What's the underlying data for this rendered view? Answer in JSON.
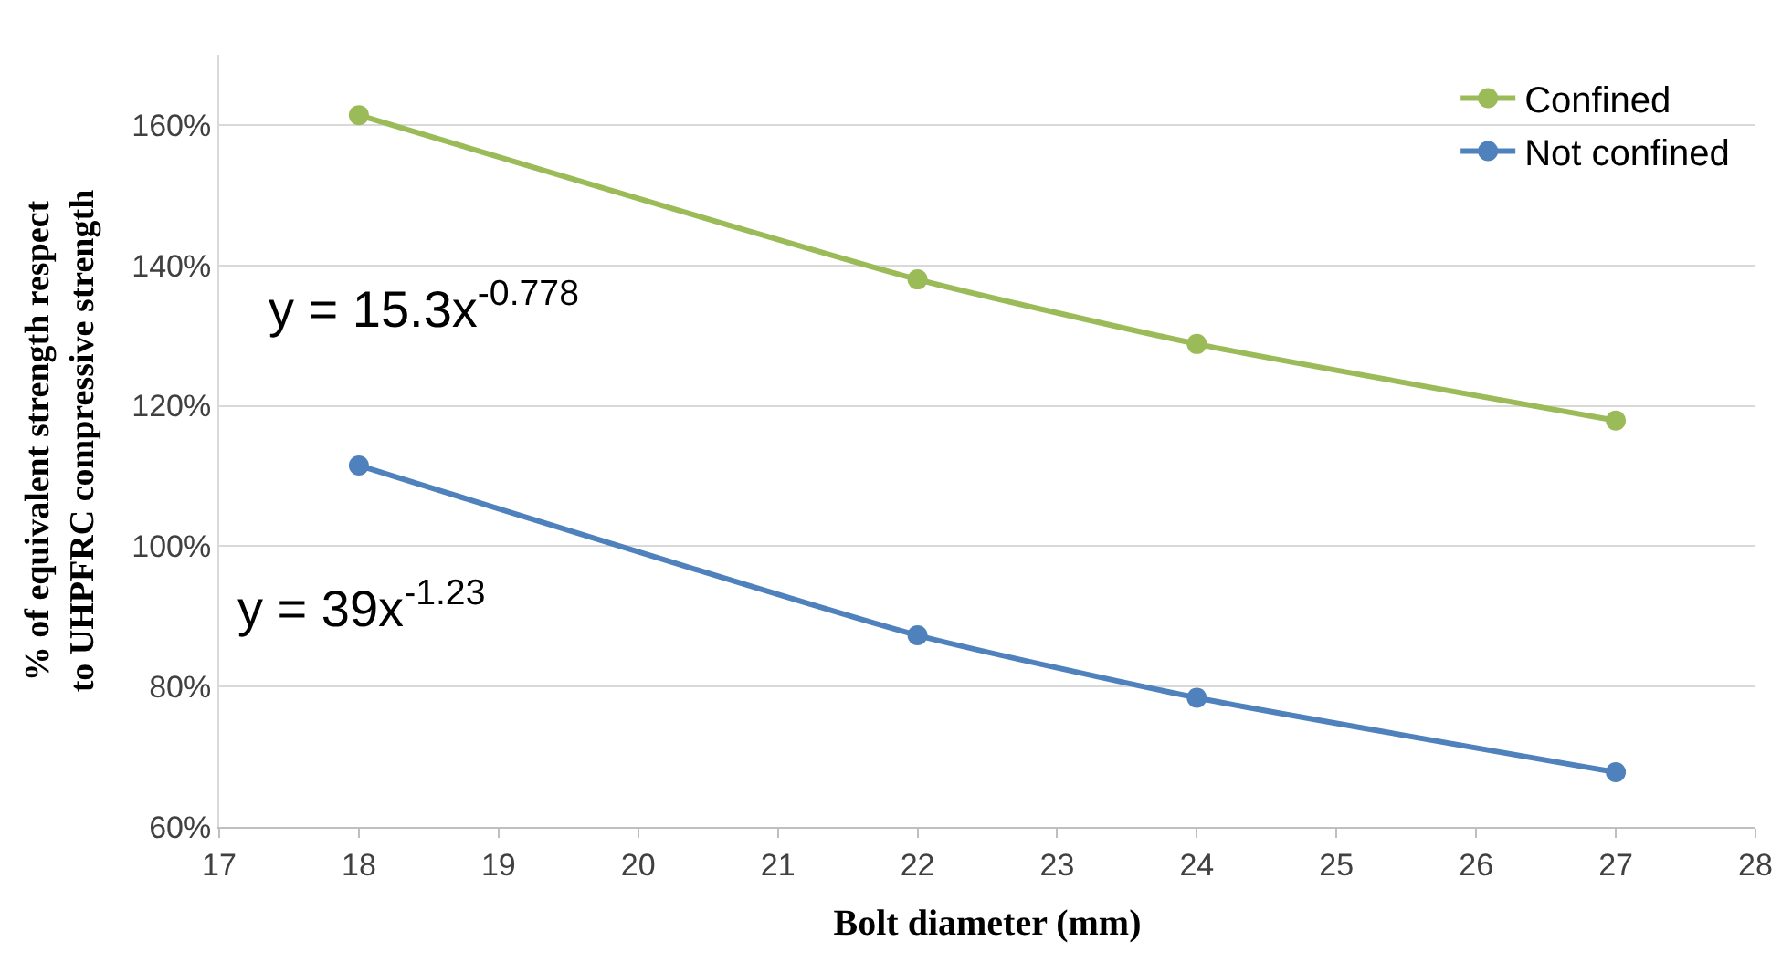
{
  "chart_data": {
    "type": "line",
    "xlabel": "Bolt diameter (mm)",
    "ylabel": "% of equivalent strength respect\nto UHPFRC compressive strength",
    "x": [
      18,
      22,
      24,
      27
    ],
    "series": [
      {
        "name": "Confined",
        "color": "#9bbb59",
        "values": [
          161.4,
          138,
          128.8,
          117.9
        ]
      },
      {
        "name": "Not confined",
        "color": "#4f81bd",
        "values": [
          111.5,
          87.3,
          78.4,
          67.8
        ]
      }
    ],
    "xlim": [
      17,
      28
    ],
    "xticks": [
      17,
      18,
      19,
      20,
      21,
      22,
      23,
      24,
      25,
      26,
      27,
      28
    ],
    "ylim": [
      60,
      170
    ],
    "yticks": [
      {
        "value": 60,
        "label": "60%"
      },
      {
        "value": 80,
        "label": "80%"
      },
      {
        "value": 100,
        "label": "100%"
      },
      {
        "value": 120,
        "label": "120%"
      },
      {
        "value": 140,
        "label": "140%"
      },
      {
        "value": 160,
        "label": "160%"
      }
    ],
    "annotations": [
      "y = 15.3x$^{-0.778}$",
      "y = 39x$^{-1.23}$"
    ],
    "grid": "y",
    "legend": "top right",
    "marker": "circle",
    "line_style": "solid"
  }
}
